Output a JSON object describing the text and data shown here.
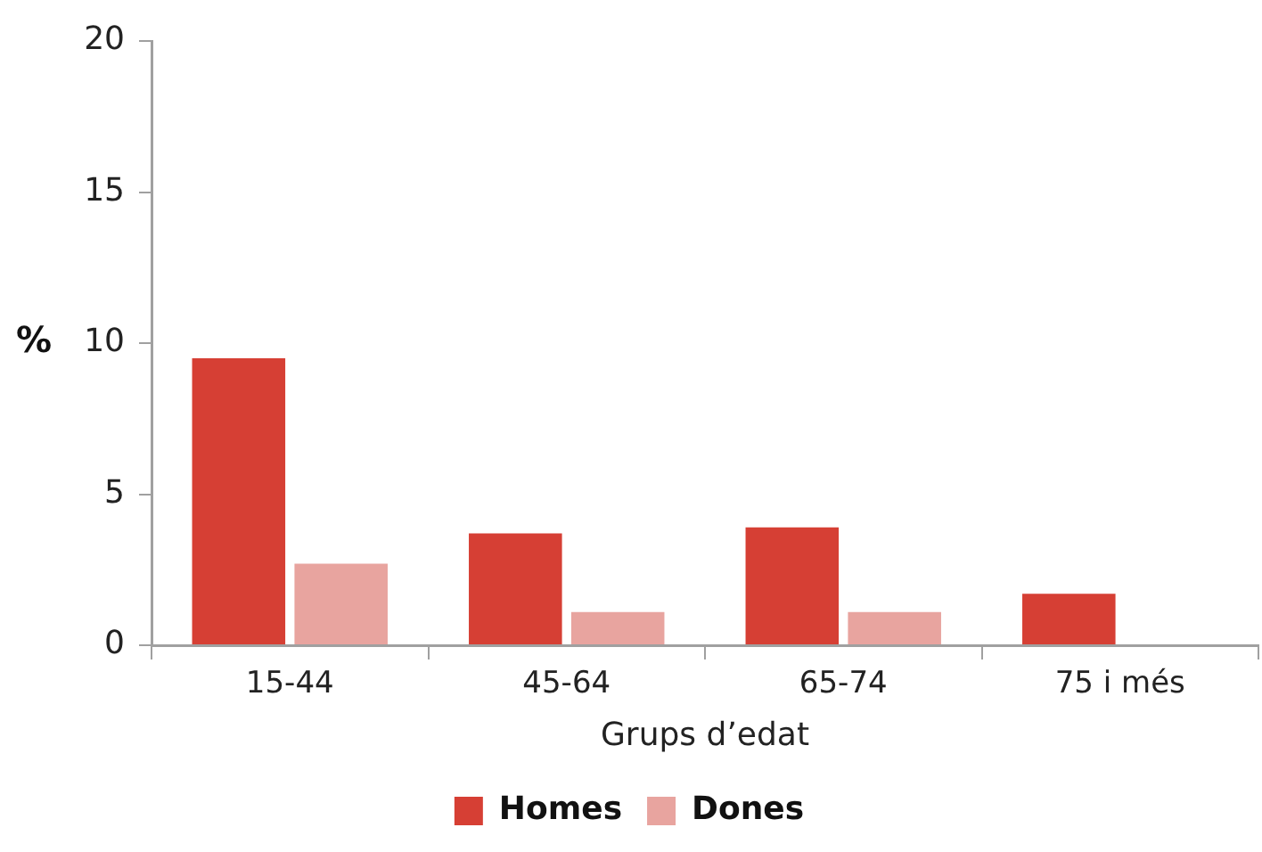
{
  "chart_data": {
    "type": "bar",
    "xlabel": "Grups d’edat",
    "ylabel": "%",
    "categories": [
      "15-44",
      "45-64",
      "65-74",
      "75 i més"
    ],
    "series": [
      {
        "name": "Homes",
        "color": "#d63f34",
        "values": [
          9.5,
          3.7,
          3.9,
          1.7
        ]
      },
      {
        "name": "Dones",
        "color": "#e8a49f",
        "values": [
          2.7,
          1.1,
          1.1,
          null
        ]
      }
    ],
    "ylim": [
      0,
      20
    ],
    "yticks": [
      0,
      5,
      10,
      15,
      20
    ],
    "grid": false,
    "legend": "bottom"
  }
}
